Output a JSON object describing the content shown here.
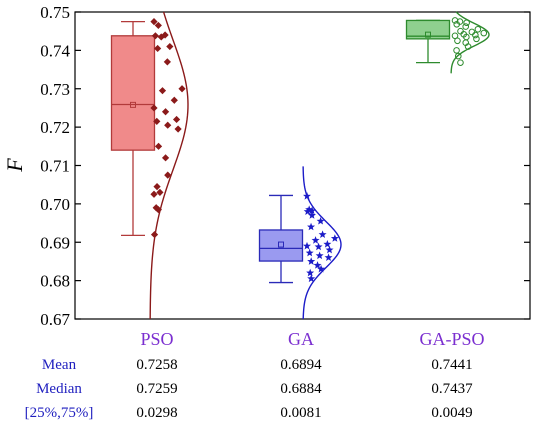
{
  "chart_data": {
    "type": "box",
    "ylabel": "F",
    "xlabel": "",
    "ylim": [
      0.67,
      0.75
    ],
    "yticks": [
      "0.67",
      "0.68",
      "0.69",
      "0.70",
      "0.71",
      "0.72",
      "0.73",
      "0.74",
      "0.75"
    ],
    "grid": false,
    "categories": [
      "PSO",
      "GA",
      "GA-PSO"
    ],
    "series": [
      {
        "category": "PSO",
        "color": "#f08a8a",
        "edge_color": "#b23a3a",
        "curve_color": "#8b1a1a",
        "marker": "diamond",
        "marker_color": "#8b1a1a",
        "whisker_low": 0.6918,
        "q1": 0.714,
        "median": 0.7259,
        "mean": 0.7258,
        "q3": 0.7438,
        "whisker_high": 0.7475,
        "points": [
          0.7475,
          0.7465,
          0.744,
          0.7438,
          0.7435,
          0.741,
          0.7405,
          0.737,
          0.73,
          0.7295,
          0.727,
          0.725,
          0.724,
          0.722,
          0.7215,
          0.7205,
          0.7195,
          0.715,
          0.712,
          0.7075,
          0.7045,
          0.703,
          0.7025,
          0.699,
          0.6985,
          0.692
        ]
      },
      {
        "category": "GA",
        "color": "#9a9af0",
        "edge_color": "#2a2ab8",
        "curve_color": "#1c1cc8",
        "marker": "star",
        "marker_color": "#1c1cc8",
        "whisker_low": 0.6795,
        "q1": 0.6851,
        "median": 0.6884,
        "mean": 0.6894,
        "q3": 0.6932,
        "whisker_high": 0.7022,
        "points": [
          0.702,
          0.6985,
          0.6982,
          0.698,
          0.697,
          0.6955,
          0.694,
          0.692,
          0.691,
          0.6905,
          0.6895,
          0.689,
          0.6888,
          0.688,
          0.6872,
          0.6865,
          0.686,
          0.685,
          0.684,
          0.683,
          0.682,
          0.6805
        ]
      },
      {
        "category": "GA-PSO",
        "color": "#8fd08f",
        "edge_color": "#2e8b2e",
        "curve_color": "#2e8b2e",
        "marker": "circle",
        "marker_color": "#2e8b2e",
        "whisker_low": 0.7368,
        "q1": 0.743,
        "median": 0.7437,
        "mean": 0.7441,
        "q3": 0.7478,
        "whisker_high": 0.7478,
        "points": [
          0.7478,
          0.7475,
          0.7472,
          0.7468,
          0.7462,
          0.7455,
          0.745,
          0.7448,
          0.7445,
          0.7442,
          0.744,
          0.7438,
          0.7435,
          0.743,
          0.7425,
          0.742,
          0.741,
          0.74,
          0.7385,
          0.7368
        ]
      }
    ]
  },
  "stats_table": {
    "row_labels": [
      "Mean",
      "Median",
      "[25%,75%]"
    ],
    "rows": [
      [
        "0.7258",
        "0.6894",
        "0.7441"
      ],
      [
        "0.7259",
        "0.6884",
        "0.7437"
      ],
      [
        "0.0298",
        "0.0081",
        "0.0049"
      ]
    ]
  }
}
